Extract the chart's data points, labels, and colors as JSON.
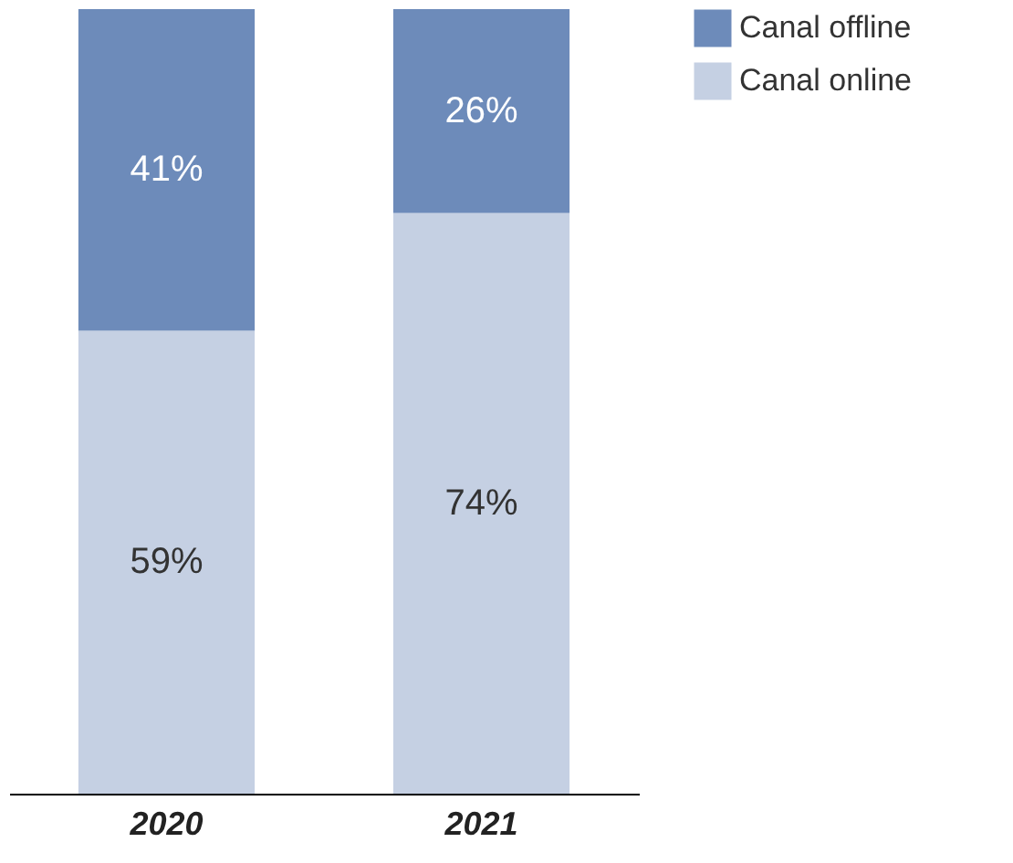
{
  "chart_data": {
    "type": "bar",
    "stacked": true,
    "categories": [
      "2020",
      "2021"
    ],
    "series": [
      {
        "name": "Canal online",
        "color": "#c5d0e3",
        "values": [
          59,
          74
        ],
        "value_labels": [
          "59%",
          "74%"
        ]
      },
      {
        "name": "Canal offline",
        "color": "#6d8bba",
        "values": [
          41,
          26
        ],
        "value_labels": [
          "41%",
          "26%"
        ]
      }
    ],
    "legend": "top right",
    "grid": false
  }
}
